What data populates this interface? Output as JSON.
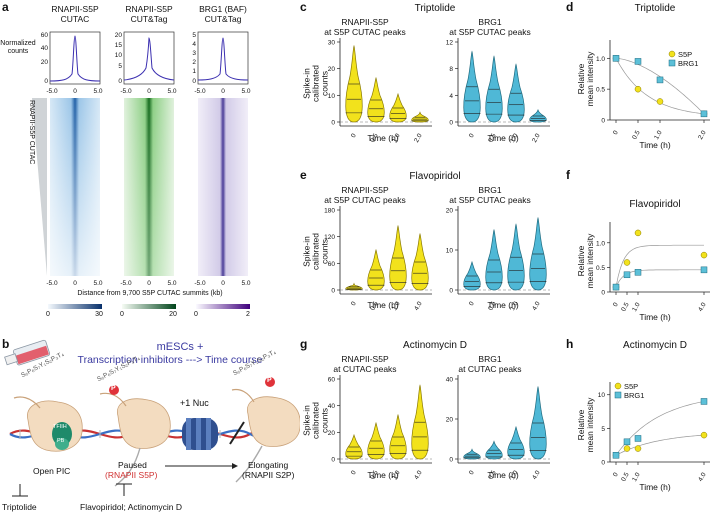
{
  "panels": {
    "a": {
      "label": "a",
      "col1_title": "RNAPII-S5P\nCUTAC",
      "col2_title": "RNAPII-S5P\nCUT&Tag",
      "col3_title": "BRG1 (BAF)\nCUT&Tag",
      "ylabel": "Normalized\ncounts",
      "side_label": "RNAPII-S5P CUTAC",
      "x_ticks": [
        "-5.0",
        "0",
        "5.0"
      ],
      "y1_ticks": [
        "60",
        "40",
        "20",
        "0"
      ],
      "y2_ticks": [
        "20",
        "15",
        "10",
        "5",
        "0"
      ],
      "y3_ticks": [
        "5",
        "4",
        "3",
        "2",
        "1",
        "0"
      ],
      "xlabel": "Distance from 9,700 S5P CUTAC summits (kb)",
      "cbar1": [
        "0",
        "30"
      ],
      "cbar2": [
        "0",
        "20"
      ],
      "cbar3": [
        "0",
        "2"
      ],
      "colors": {
        "blue": "#2e7bbf",
        "green": "#3a9a3a",
        "purple": "#6a5aa8"
      }
    },
    "b": {
      "label": "b",
      "title1": "mESCs +",
      "title2": "Transcription inhibitors ---> Time course",
      "nuc": "+1 Nuc",
      "tfiih": "TFIIH",
      "ptefb": "PB",
      "open_pic": "Open PIC",
      "paused": "Paused",
      "paused_sub": "(RNAPII S5P)",
      "elongating": "Elongating",
      "elongating_sub": "(RNAPII S2P)",
      "inhib1": "Triptolide",
      "inhib2": "Flavopiridol; Actinomycin D",
      "p": "P",
      "seq1": "S₅P₆S₇Y₁S₂P₃T₄",
      "seq2": "S₅P₆S₇Y₁S₂P₃T₄",
      "seq3": "S₅P₆S₇Y₁S₂P₃T₄"
    },
    "c": {
      "label": "c",
      "title": "Triptolide",
      "sub1": "RNAPII-S5P\nat S5P CUTAC peaks",
      "sub2": "BRG1\nat S5P CUTAC peaks",
      "ylabel": "Spike-in calibrated\ncounts",
      "y1_ticks": [
        "30",
        "20",
        "10",
        "0"
      ],
      "y2_ticks": [
        "12",
        "8",
        "4",
        "0"
      ],
      "x_ticks": [
        "0",
        "0.5",
        "1.0",
        "2.0"
      ],
      "xlabel": "Time (h)"
    },
    "d": {
      "label": "d",
      "title": "Triptolide",
      "ylabel": "Relative\nmean intensity",
      "y_ticks": [
        "1.0",
        "0.5",
        "0"
      ],
      "x_ticks": [
        "0",
        "0.5",
        "1.0",
        "2.0"
      ],
      "xlabel": "Time (h)",
      "legend": [
        "S5P",
        "BRG1"
      ]
    },
    "e": {
      "label": "e",
      "title": "Flavopiridol",
      "sub1": "RNAPII-S5P\nat S5P CUTAC peaks",
      "sub2": "BRG1\nat S5P CUTAC peaks",
      "ylabel": "Spike-in calibrated\ncounts",
      "y1_ticks": [
        "180",
        "120",
        "60",
        "0"
      ],
      "y2_ticks": [
        "20",
        "10",
        "0"
      ],
      "x_ticks": [
        "0",
        "0.5",
        "1.0",
        "4.0"
      ],
      "xlabel": "Time (h)"
    },
    "f": {
      "label": "f",
      "title": "Flavopiridol",
      "ylabel": "Relative\nmean intensity",
      "y_ticks": [
        "1.0",
        "0.5",
        "0"
      ],
      "x_ticks": [
        "0",
        "0.5",
        "1.0",
        "4.0"
      ],
      "xlabel": "Time (h)",
      "legend": [
        "S5P",
        "BRG1"
      ]
    },
    "g": {
      "label": "g",
      "title": "Actinomycin D",
      "sub1": "RNAPII-S5P\nat CUTAC peaks",
      "sub2": "BRG1\nat CUTAC peaks",
      "ylabel": "Spike-in calibrated\ncounts",
      "y1_ticks": [
        "60",
        "40",
        "20",
        "0"
      ],
      "y2_ticks": [
        "40",
        "20",
        "0"
      ],
      "x_ticks": [
        "0",
        "0.5",
        "1.0",
        "4.0"
      ],
      "xlabel": "Time (h)"
    },
    "h": {
      "label": "h",
      "title": "Actinomycin D",
      "ylabel": "Relative\nmean intensity",
      "y_ticks": [
        "10",
        "5",
        "0"
      ],
      "x_ticks": [
        "0",
        "0.5",
        "1.0",
        "4.0"
      ],
      "xlabel": "Time (h)",
      "legend": [
        "S5P",
        "BRG1"
      ]
    }
  },
  "chart_data": [
    {
      "type": "scatter",
      "panel": "d",
      "title": "Triptolide",
      "xlabel": "Time (h)",
      "ylabel": "Relative mean intensity",
      "ylim": [
        0,
        1.2
      ],
      "series": [
        {
          "name": "S5P",
          "x": [
            0,
            0.5,
            1.0,
            2.0
          ],
          "values": [
            1.0,
            0.5,
            0.3,
            0.1
          ]
        },
        {
          "name": "BRG1",
          "x": [
            0,
            0.5,
            1.0,
            2.0
          ],
          "values": [
            1.0,
            0.95,
            0.65,
            0.1
          ]
        }
      ]
    },
    {
      "type": "scatter",
      "panel": "f",
      "title": "Flavopiridol",
      "xlabel": "Time (h)",
      "ylabel": "Relative mean intensity",
      "ylim": [
        0,
        1.3
      ],
      "series": [
        {
          "name": "S5P",
          "x": [
            0,
            0.5,
            1.0,
            4.0
          ],
          "values": [
            0.1,
            0.6,
            1.2,
            0.75
          ]
        },
        {
          "name": "BRG1",
          "x": [
            0,
            0.5,
            1.0,
            4.0
          ],
          "values": [
            0.1,
            0.35,
            0.4,
            0.45
          ]
        }
      ]
    },
    {
      "type": "scatter",
      "panel": "h",
      "title": "Actinomycin D",
      "xlabel": "Time (h)",
      "ylabel": "Relative mean intensity",
      "ylim": [
        0,
        11
      ],
      "series": [
        {
          "name": "S5P",
          "x": [
            0,
            0.5,
            1.0,
            4.0
          ],
          "values": [
            1,
            2,
            2,
            4
          ]
        },
        {
          "name": "BRG1",
          "x": [
            0,
            0.5,
            1.0,
            4.0
          ],
          "values": [
            1,
            3,
            3.5,
            9
          ]
        }
      ]
    }
  ]
}
